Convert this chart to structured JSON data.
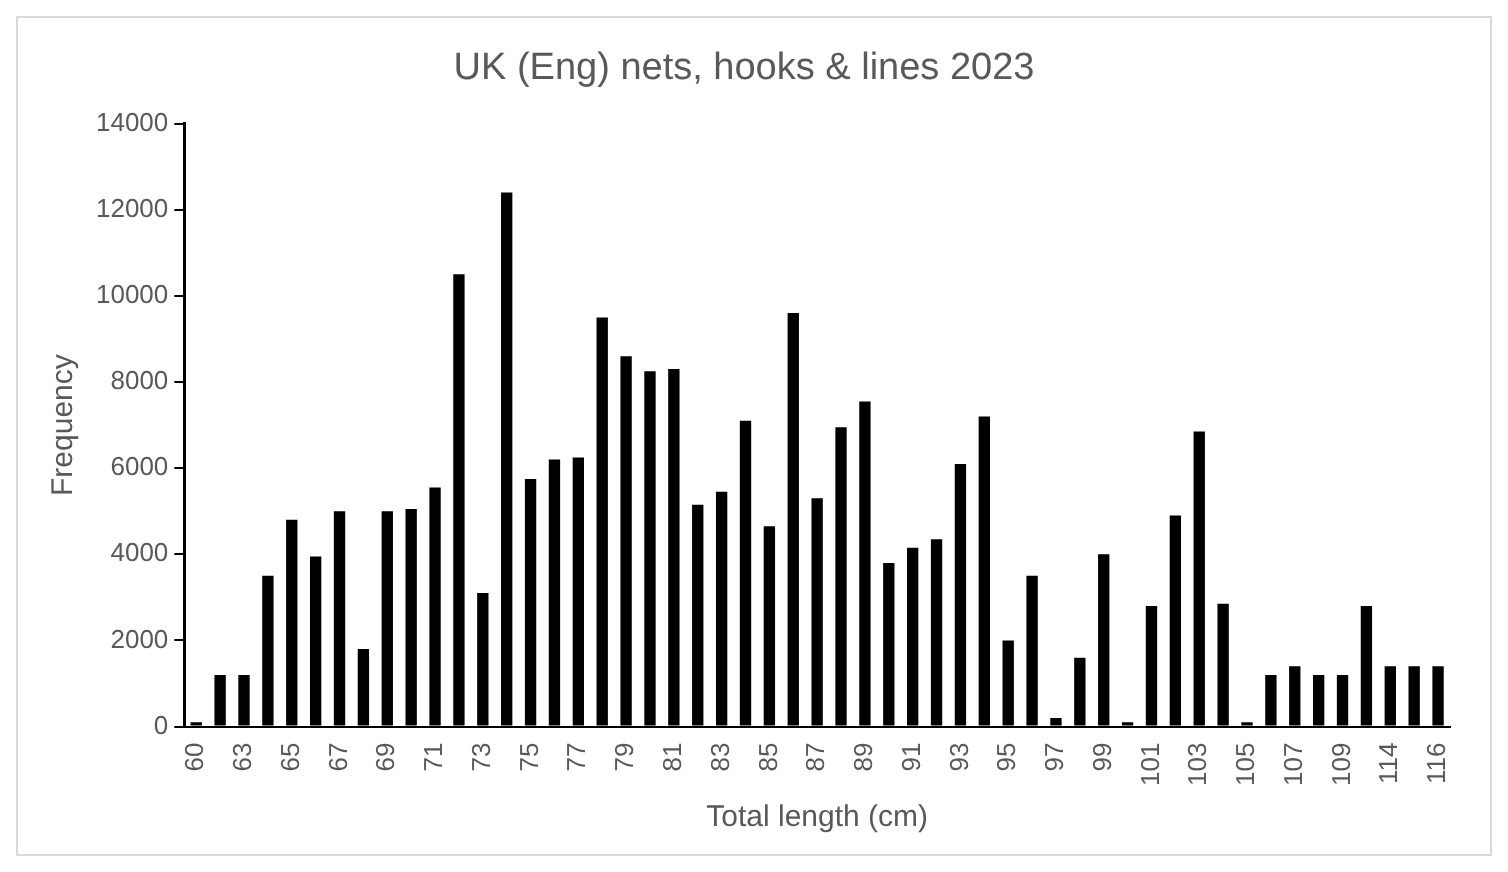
{
  "chart_data": {
    "type": "bar",
    "title": "UK (Eng) nets, hooks & lines 2023",
    "xlabel": "Total length (cm)",
    "ylabel": "Frequency",
    "categories": [
      "60",
      null,
      "63",
      null,
      "65",
      null,
      "67",
      null,
      "69",
      null,
      "71",
      null,
      "73",
      null,
      "75",
      null,
      "77",
      null,
      "79",
      null,
      "81",
      null,
      "83",
      null,
      "85",
      null,
      "87",
      null,
      "89",
      null,
      "91",
      null,
      "93",
      null,
      "95",
      null,
      "97",
      null,
      "99",
      null,
      "101",
      null,
      "103",
      null,
      "105",
      null,
      "107",
      null,
      "109",
      null,
      "114",
      null,
      "116"
    ],
    "values": [
      100,
      1200,
      1200,
      3500,
      4800,
      3950,
      5000,
      1800,
      5000,
      5050,
      5550,
      10500,
      3100,
      12400,
      5750,
      6200,
      6250,
      9500,
      8600,
      8250,
      8300,
      5150,
      5450,
      7100,
      4650,
      9600,
      5300,
      6950,
      7550,
      3800,
      4150,
      4350,
      6100,
      7200,
      2000,
      3500,
      200,
      1600,
      4000,
      100,
      2800,
      4900,
      6850,
      2850,
      100,
      1200,
      1400,
      1200,
      1200,
      2800,
      1400,
      1400,
      1400
    ],
    "color": "#000000",
    "ylim": [
      0,
      14000
    ],
    "yticks": [
      0,
      2000,
      4000,
      6000,
      8000,
      10000,
      12000,
      14000
    ],
    "grid": false,
    "legend": false
  }
}
